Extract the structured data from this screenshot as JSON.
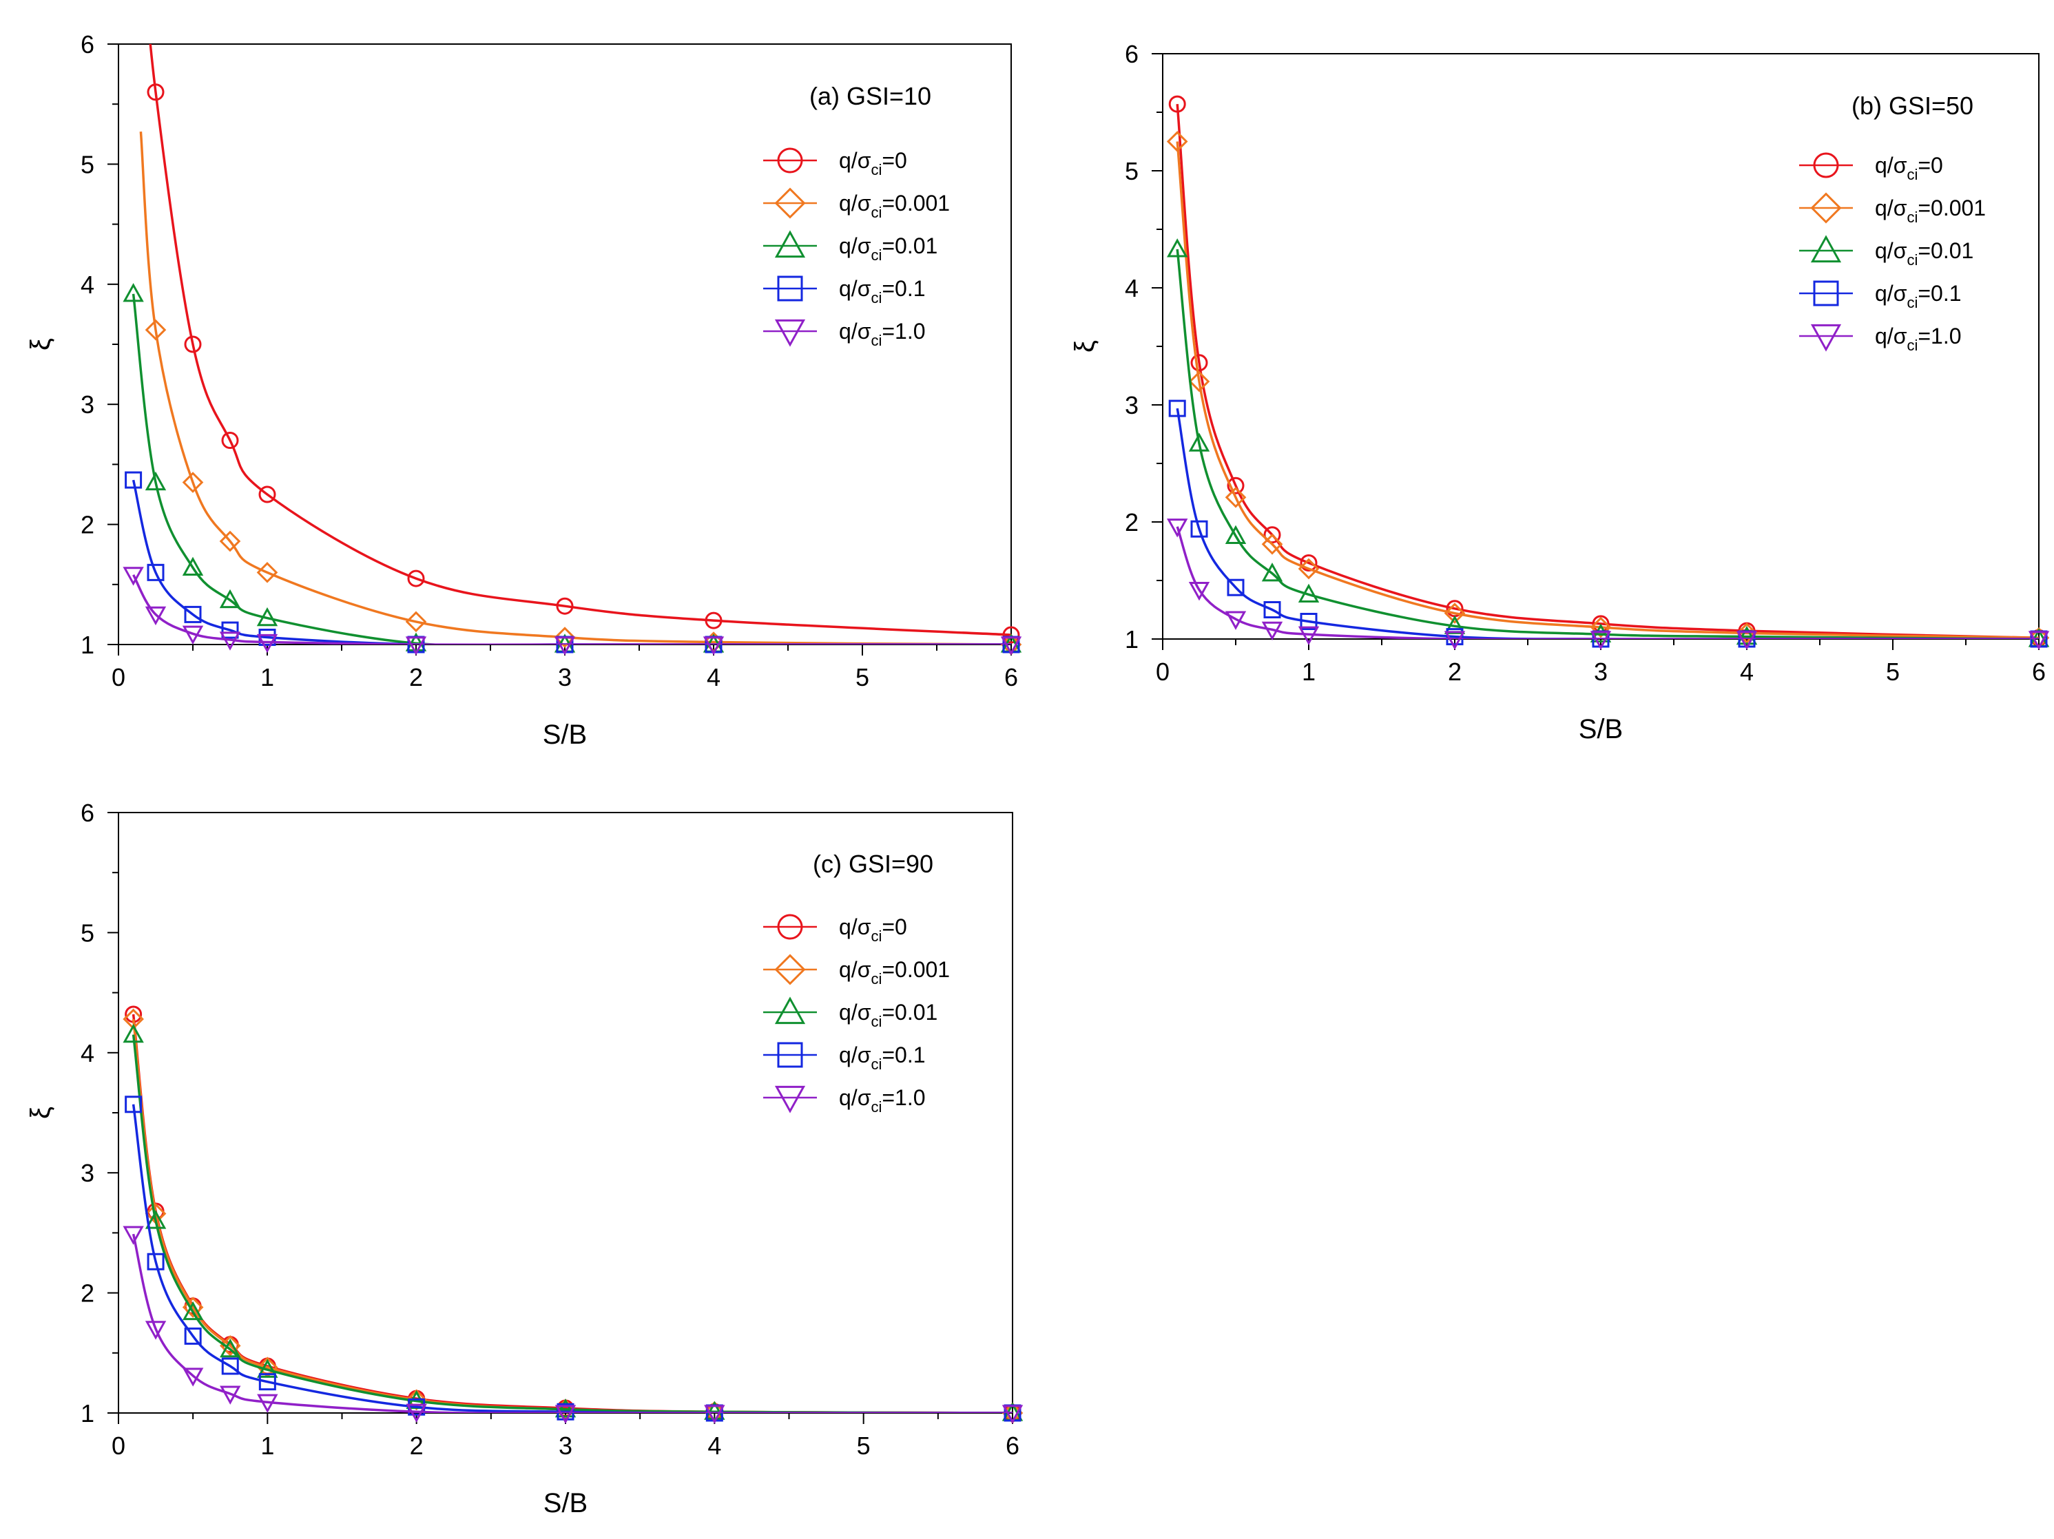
{
  "chart_data": [
    {
      "type": "line",
      "title": "(a) GSI=10",
      "xlabel": "S/B",
      "ylabel": "ξ",
      "xlim": [
        0,
        6
      ],
      "ylim": [
        1,
        6
      ],
      "xticks": [
        0,
        1,
        2,
        3,
        4,
        5,
        6
      ],
      "yticks": [
        1,
        2,
        3,
        4,
        5,
        6
      ],
      "legend_position": "top-right",
      "series": [
        {
          "name": "q/σci=0",
          "label_main": "q/σ",
          "label_sub": "ci",
          "label_tail": "=0",
          "color": "#e8141c",
          "marker": "circle",
          "x": [
            0.25,
            0.5,
            0.75,
            1,
            2,
            3,
            4,
            6
          ],
          "values": [
            5.6,
            3.5,
            2.7,
            2.25,
            1.55,
            1.32,
            1.2,
            1.08
          ]
        },
        {
          "name": "q/σci=0.001",
          "label_main": "q/σ",
          "label_sub": "ci",
          "label_tail": "=0.001",
          "color": "#f07820",
          "marker": "diamond",
          "x": [
            0.25,
            0.5,
            0.75,
            1,
            2,
            3,
            4,
            6
          ],
          "values": [
            3.62,
            2.35,
            1.86,
            1.6,
            1.19,
            1.06,
            1.02,
            1.0
          ]
        },
        {
          "name": "q/σci=0.01",
          "label_main": "q/σ",
          "label_sub": "ci",
          "label_tail": "=0.01",
          "color": "#109030",
          "marker": "triangle-up",
          "x": [
            0.1,
            0.25,
            0.5,
            0.75,
            1,
            2,
            3,
            4,
            6
          ],
          "values": [
            3.92,
            2.35,
            1.64,
            1.37,
            1.22,
            1.01,
            1.0,
            1.0,
            1.0
          ]
        },
        {
          "name": "q/σci=0.1",
          "label_main": "q/σ",
          "label_sub": "ci",
          "label_tail": "=0.1",
          "color": "#1428e0",
          "marker": "square",
          "x": [
            0.1,
            0.25,
            0.5,
            0.75,
            1,
            2,
            3,
            4,
            6
          ],
          "values": [
            2.37,
            1.6,
            1.25,
            1.12,
            1.06,
            1.0,
            1.0,
            1.0,
            1.0
          ]
        },
        {
          "name": "q/σci=1.0",
          "label_main": "q/σ",
          "label_sub": "ci",
          "label_tail": "=1.0",
          "color": "#9020c8",
          "marker": "triangle-down",
          "x": [
            0.1,
            0.25,
            0.5,
            0.75,
            1,
            2,
            3,
            4,
            6
          ],
          "values": [
            1.58,
            1.25,
            1.09,
            1.04,
            1.02,
            1.0,
            1.0,
            1.0,
            1.0
          ]
        }
      ]
    },
    {
      "type": "line",
      "title": "(b) GSI=50",
      "xlabel": "S/B",
      "ylabel": "ξ",
      "xlim": [
        0,
        6
      ],
      "ylim": [
        1,
        6
      ],
      "xticks": [
        0,
        1,
        2,
        3,
        4,
        5,
        6
      ],
      "yticks": [
        1,
        2,
        3,
        4,
        5,
        6
      ],
      "legend_position": "top-right",
      "series": [
        {
          "name": "q/σci=0",
          "label_main": "q/σ",
          "label_sub": "ci",
          "label_tail": "=0",
          "color": "#e8141c",
          "marker": "circle",
          "x": [
            0.1,
            0.25,
            0.5,
            0.75,
            1,
            2,
            3,
            4,
            6
          ],
          "values": [
            5.57,
            3.36,
            2.31,
            1.89,
            1.65,
            1.26,
            1.13,
            1.07,
            1.01
          ]
        },
        {
          "name": "q/σci=0.001",
          "label_main": "q/σ",
          "label_sub": "ci",
          "label_tail": "=0.001",
          "color": "#f07820",
          "marker": "diamond",
          "x": [
            0.1,
            0.25,
            0.5,
            0.75,
            1,
            2,
            3,
            4,
            6
          ],
          "values": [
            5.25,
            3.2,
            2.21,
            1.81,
            1.6,
            1.22,
            1.1,
            1.05,
            1.01
          ]
        },
        {
          "name": "q/σci=0.01",
          "label_main": "q/σ",
          "label_sub": "ci",
          "label_tail": "=0.01",
          "color": "#109030",
          "marker": "triangle-up",
          "x": [
            0.1,
            0.25,
            0.5,
            0.75,
            1,
            2,
            3,
            4,
            6
          ],
          "values": [
            4.33,
            2.67,
            1.88,
            1.56,
            1.38,
            1.11,
            1.04,
            1.02,
            1.0
          ]
        },
        {
          "name": "q/σci=0.1",
          "label_main": "q/σ",
          "label_sub": "ci",
          "label_tail": "=0.1",
          "color": "#1428e0",
          "marker": "square",
          "x": [
            0.1,
            0.25,
            0.5,
            0.75,
            1,
            2,
            3,
            4,
            6
          ],
          "values": [
            2.97,
            1.94,
            1.44,
            1.25,
            1.15,
            1.02,
            1.0,
            1.0,
            1.0
          ]
        },
        {
          "name": "q/σci=1.0",
          "label_main": "q/σ",
          "label_sub": "ci",
          "label_tail": "=1.0",
          "color": "#9020c8",
          "marker": "triangle-down",
          "x": [
            0.1,
            0.25,
            0.5,
            0.75,
            1,
            2,
            3,
            4,
            6
          ],
          "values": [
            1.96,
            1.42,
            1.17,
            1.08,
            1.04,
            1.0,
            1.0,
            1.0,
            1.0
          ]
        }
      ]
    },
    {
      "type": "line",
      "title": "(c) GSI=90",
      "xlabel": "S/B",
      "ylabel": "ξ",
      "xlim": [
        0,
        6
      ],
      "ylim": [
        1,
        6
      ],
      "xticks": [
        0,
        1,
        2,
        3,
        4,
        5,
        6
      ],
      "yticks": [
        1,
        2,
        3,
        4,
        5,
        6
      ],
      "legend_position": "top-right",
      "series": [
        {
          "name": "q/σci=0",
          "label_main": "q/σ",
          "label_sub": "ci",
          "label_tail": "=0",
          "color": "#e8141c",
          "marker": "circle",
          "x": [
            0.1,
            0.25,
            0.5,
            0.75,
            1,
            2,
            3,
            4,
            6
          ],
          "values": [
            4.32,
            2.68,
            1.89,
            1.57,
            1.39,
            1.12,
            1.04,
            1.01,
            1.0
          ]
        },
        {
          "name": "q/σci=0.001",
          "label_main": "q/σ",
          "label_sub": "ci",
          "label_tail": "=0.001",
          "color": "#f07820",
          "marker": "diamond",
          "x": [
            0.1,
            0.25,
            0.5,
            0.75,
            1,
            2,
            3,
            4,
            6
          ],
          "values": [
            4.28,
            2.66,
            1.88,
            1.56,
            1.38,
            1.11,
            1.03,
            1.01,
            1.0
          ]
        },
        {
          "name": "q/σci=0.01",
          "label_main": "q/σ",
          "label_sub": "ci",
          "label_tail": "=0.01",
          "color": "#109030",
          "marker": "triangle-up",
          "x": [
            0.1,
            0.25,
            0.5,
            0.75,
            1,
            2,
            3,
            4,
            6
          ],
          "values": [
            4.15,
            2.6,
            1.84,
            1.53,
            1.36,
            1.1,
            1.03,
            1.01,
            1.0
          ]
        },
        {
          "name": "q/σci=0.1",
          "label_main": "q/σ",
          "label_sub": "ci",
          "label_tail": "=0.1",
          "color": "#1428e0",
          "marker": "square",
          "x": [
            0.1,
            0.25,
            0.5,
            0.75,
            1,
            2,
            3,
            4,
            6
          ],
          "values": [
            3.57,
            2.26,
            1.64,
            1.39,
            1.26,
            1.05,
            1.01,
            1.0,
            1.0
          ]
        },
        {
          "name": "q/σci=1.0",
          "label_main": "q/σ",
          "label_sub": "ci",
          "label_tail": "=1.0",
          "color": "#9020c8",
          "marker": "triangle-down",
          "x": [
            0.1,
            0.25,
            0.5,
            0.75,
            1,
            2,
            3,
            4,
            6
          ],
          "values": [
            2.49,
            1.7,
            1.31,
            1.16,
            1.09,
            1.01,
            1.0,
            1.0,
            1.0
          ]
        }
      ]
    }
  ]
}
